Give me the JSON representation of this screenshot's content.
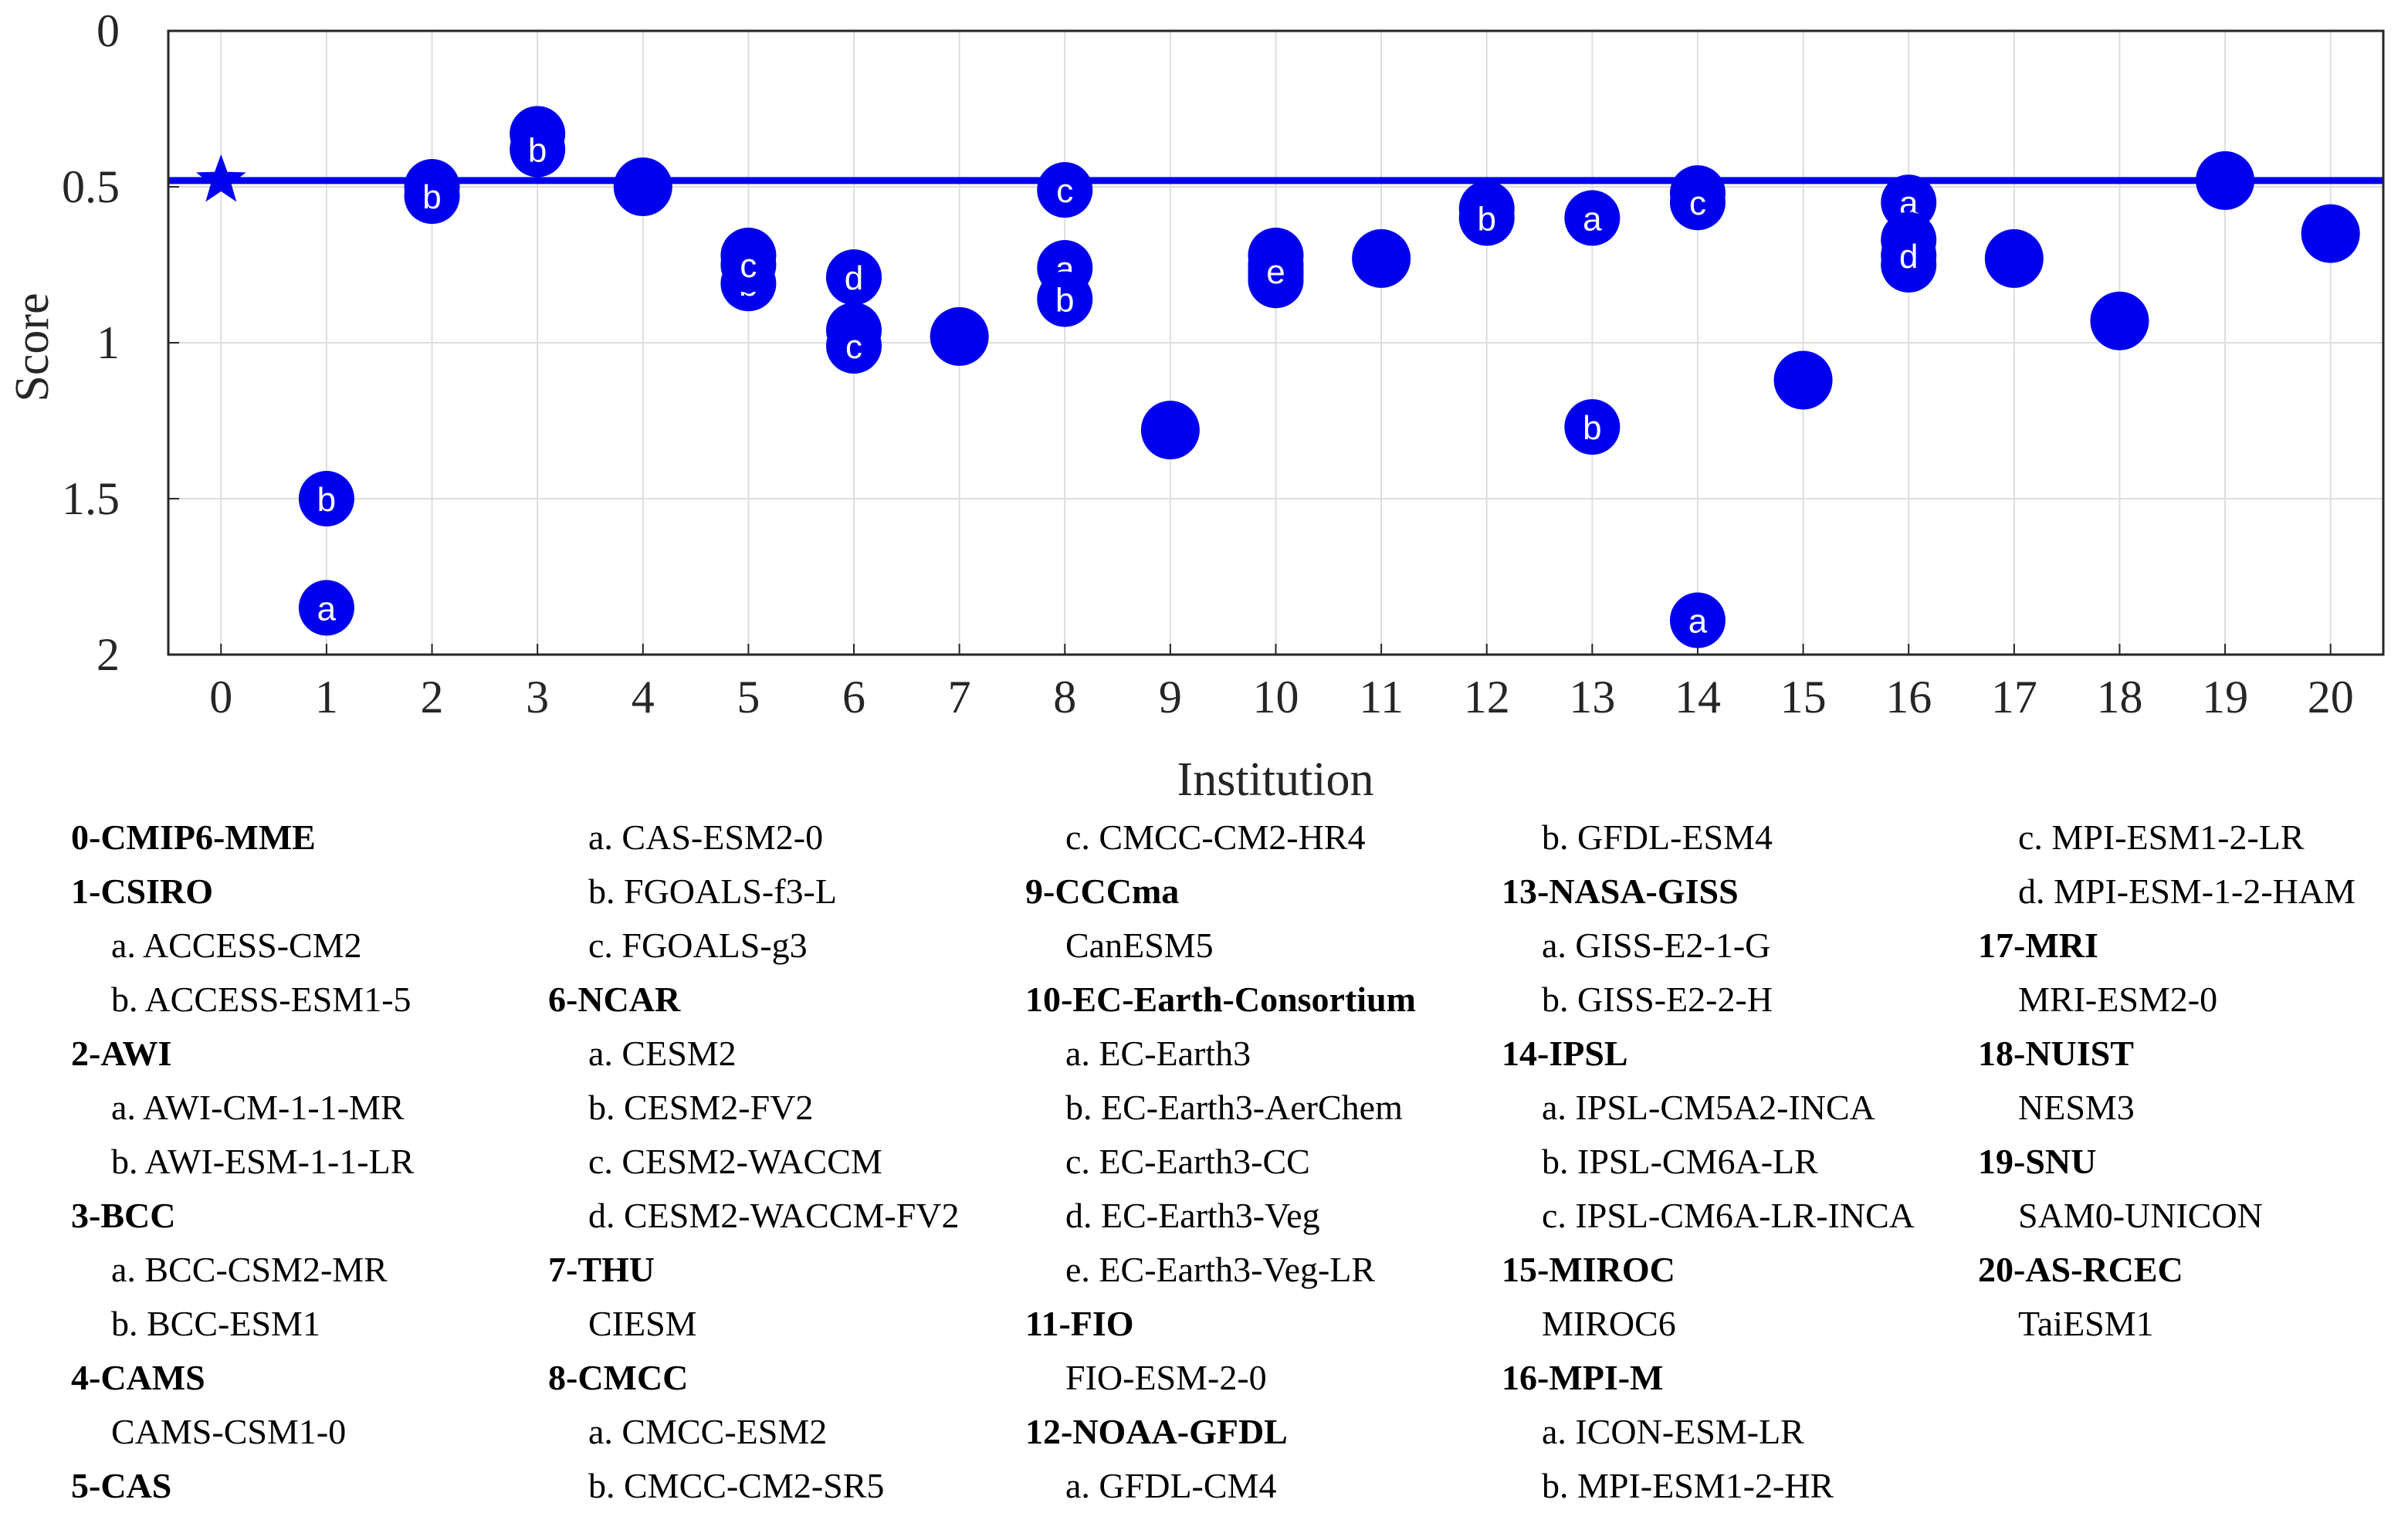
{
  "chart_data": {
    "type": "scatter",
    "xlabel": "Institution",
    "ylabel": "Score",
    "xlim": [
      -0.5,
      20.5
    ],
    "ylim": [
      0,
      2
    ],
    "y_reversed": true,
    "grid": true,
    "xticks": [
      "0",
      "1",
      "2",
      "3",
      "4",
      "5",
      "6",
      "7",
      "8",
      "9",
      "10",
      "11",
      "12",
      "13",
      "14",
      "15",
      "16",
      "17",
      "18",
      "19",
      "20"
    ],
    "yticks": [
      "0",
      "0.5",
      "1",
      "1.5",
      "2"
    ],
    "reference": {
      "label": "CMIP6-MME",
      "x": 0,
      "y": 0.48,
      "marker": "star"
    },
    "points": [
      {
        "x": 1,
        "y": 1.85,
        "label": "a"
      },
      {
        "x": 1,
        "y": 1.5,
        "label": "b"
      },
      {
        "x": 2,
        "y": 0.5,
        "label": "a"
      },
      {
        "x": 2,
        "y": 0.53,
        "label": "b"
      },
      {
        "x": 3,
        "y": 0.33,
        "label": "a"
      },
      {
        "x": 3,
        "y": 0.38,
        "label": "b"
      },
      {
        "x": 4,
        "y": 0.5,
        "label": ""
      },
      {
        "x": 5,
        "y": 0.72,
        "label": "a"
      },
      {
        "x": 5,
        "y": 0.81,
        "label": "b"
      },
      {
        "x": 5,
        "y": 0.75,
        "label": "c"
      },
      {
        "x": 6,
        "y": 0.96,
        "label": "a"
      },
      {
        "x": 6,
        "y": 0.79,
        "label": "b"
      },
      {
        "x": 6,
        "y": 1.01,
        "label": "c"
      },
      {
        "x": 6,
        "y": 0.79,
        "label": "d"
      },
      {
        "x": 7,
        "y": 0.98,
        "label": ""
      },
      {
        "x": 8,
        "y": 0.76,
        "label": "a"
      },
      {
        "x": 8,
        "y": 0.86,
        "label": "b"
      },
      {
        "x": 8,
        "y": 0.51,
        "label": "c"
      },
      {
        "x": 9,
        "y": 1.28,
        "label": ""
      },
      {
        "x": 10,
        "y": 0.78,
        "label": "a"
      },
      {
        "x": 10,
        "y": 0.72,
        "label": "b"
      },
      {
        "x": 10,
        "y": 0.75,
        "label": "c"
      },
      {
        "x": 10,
        "y": 0.8,
        "label": "d"
      },
      {
        "x": 10,
        "y": 0.77,
        "label": "e"
      },
      {
        "x": 11,
        "y": 0.73,
        "label": ""
      },
      {
        "x": 12,
        "y": 0.57,
        "label": "a"
      },
      {
        "x": 12,
        "y": 0.6,
        "label": "b"
      },
      {
        "x": 13,
        "y": 0.6,
        "label": "a"
      },
      {
        "x": 13,
        "y": 1.27,
        "label": "b"
      },
      {
        "x": 14,
        "y": 1.89,
        "label": "a"
      },
      {
        "x": 14,
        "y": 0.52,
        "label": "b"
      },
      {
        "x": 14,
        "y": 0.55,
        "label": "c"
      },
      {
        "x": 15,
        "y": 1.12,
        "label": ""
      },
      {
        "x": 16,
        "y": 0.55,
        "label": "a"
      },
      {
        "x": 16,
        "y": 0.75,
        "label": "b"
      },
      {
        "x": 16,
        "y": 0.67,
        "label": "c"
      },
      {
        "x": 16,
        "y": 0.72,
        "label": "d"
      },
      {
        "x": 17,
        "y": 0.73,
        "label": ""
      },
      {
        "x": 18,
        "y": 0.93,
        "label": ""
      },
      {
        "x": 19,
        "y": 0.48,
        "label": ""
      },
      {
        "x": 20,
        "y": 0.65,
        "label": ""
      }
    ]
  },
  "colors": {
    "marker": "#0000ee",
    "grid": "#dddddd",
    "axis": "#262626"
  },
  "legend": {
    "columns": [
      [
        {
          "text": "0-CMIP6-MME",
          "kind": "inst"
        },
        {
          "text": "1-CSIRO",
          "kind": "inst"
        },
        {
          "text": "a. ACCESS-CM2",
          "kind": "model"
        },
        {
          "text": "b. ACCESS-ESM1-5",
          "kind": "model"
        },
        {
          "text": "2-AWI",
          "kind": "inst"
        },
        {
          "text": "a. AWI-CM-1-1-MR",
          "kind": "model"
        },
        {
          "text": "b. AWI-ESM-1-1-LR",
          "kind": "model"
        },
        {
          "text": "3-BCC",
          "kind": "inst"
        },
        {
          "text": "a. BCC-CSM2-MR",
          "kind": "model"
        },
        {
          "text": "b. BCC-ESM1",
          "kind": "model"
        },
        {
          "text": "4-CAMS",
          "kind": "inst"
        },
        {
          "text": "CAMS-CSM1-0",
          "kind": "model"
        },
        {
          "text": "5-CAS",
          "kind": "inst"
        }
      ],
      [
        {
          "text": "a. CAS-ESM2-0",
          "kind": "model"
        },
        {
          "text": "b. FGOALS-f3-L",
          "kind": "model"
        },
        {
          "text": "c. FGOALS-g3",
          "kind": "model"
        },
        {
          "text": "6-NCAR",
          "kind": "inst"
        },
        {
          "text": "a. CESM2",
          "kind": "model"
        },
        {
          "text": "b. CESM2-FV2",
          "kind": "model"
        },
        {
          "text": "c. CESM2-WACCM",
          "kind": "model"
        },
        {
          "text": "d. CESM2-WACCM-FV2",
          "kind": "model"
        },
        {
          "text": "7-THU",
          "kind": "inst"
        },
        {
          "text": "CIESM",
          "kind": "model"
        },
        {
          "text": "8-CMCC",
          "kind": "inst"
        },
        {
          "text": "a. CMCC-ESM2",
          "kind": "model"
        },
        {
          "text": "b. CMCC-CM2-SR5",
          "kind": "model"
        }
      ],
      [
        {
          "text": "c. CMCC-CM2-HR4",
          "kind": "model"
        },
        {
          "text": "9-CCCma",
          "kind": "inst"
        },
        {
          "text": "CanESM5",
          "kind": "model"
        },
        {
          "text": "10-EC-Earth-Consortium",
          "kind": "inst"
        },
        {
          "text": "a. EC-Earth3",
          "kind": "model"
        },
        {
          "text": "b. EC-Earth3-AerChem",
          "kind": "model"
        },
        {
          "text": "c. EC-Earth3-CC",
          "kind": "model"
        },
        {
          "text": "d. EC-Earth3-Veg",
          "kind": "model"
        },
        {
          "text": "e. EC-Earth3-Veg-LR",
          "kind": "model"
        },
        {
          "text": "11-FIO",
          "kind": "inst"
        },
        {
          "text": "FIO-ESM-2-0",
          "kind": "model"
        },
        {
          "text": "12-NOAA-GFDL",
          "kind": "inst"
        },
        {
          "text": "a. GFDL-CM4",
          "kind": "model"
        }
      ],
      [
        {
          "text": "b. GFDL-ESM4",
          "kind": "model"
        },
        {
          "text": "13-NASA-GISS",
          "kind": "inst"
        },
        {
          "text": "a. GISS-E2-1-G",
          "kind": "model"
        },
        {
          "text": "b. GISS-E2-2-H",
          "kind": "model"
        },
        {
          "text": "14-IPSL",
          "kind": "inst"
        },
        {
          "text": "a. IPSL-CM5A2-INCA",
          "kind": "model"
        },
        {
          "text": "b. IPSL-CM6A-LR",
          "kind": "model"
        },
        {
          "text": "c. IPSL-CM6A-LR-INCA",
          "kind": "model"
        },
        {
          "text": "15-MIROC",
          "kind": "inst"
        },
        {
          "text": "MIROC6",
          "kind": "model"
        },
        {
          "text": "16-MPI-M",
          "kind": "inst"
        },
        {
          "text": "a. ICON-ESM-LR",
          "kind": "model"
        },
        {
          "text": "b. MPI-ESM1-2-HR",
          "kind": "model"
        }
      ],
      [
        {
          "text": "c. MPI-ESM1-2-LR",
          "kind": "model"
        },
        {
          "text": "d. MPI-ESM-1-2-HAM",
          "kind": "model"
        },
        {
          "text": "17-MRI",
          "kind": "inst"
        },
        {
          "text": "MRI-ESM2-0",
          "kind": "model"
        },
        {
          "text": "18-NUIST",
          "kind": "inst"
        },
        {
          "text": "NESM3",
          "kind": "model"
        },
        {
          "text": "19-SNU",
          "kind": "inst"
        },
        {
          "text": "SAM0-UNICON",
          "kind": "model"
        },
        {
          "text": "20-AS-RCEC",
          "kind": "inst"
        },
        {
          "text": "TaiESM1",
          "kind": "model"
        }
      ]
    ]
  }
}
